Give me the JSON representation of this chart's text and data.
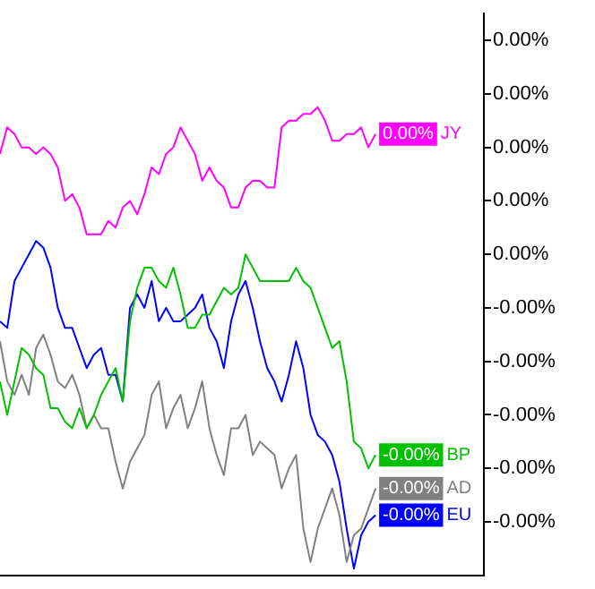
{
  "chart_data": {
    "type": "line",
    "grid": false,
    "legend": "right",
    "marker": "none",
    "line_style": "solid",
    "categories": [
      null,
      null,
      null,
      null,
      null,
      null,
      null,
      null,
      null,
      null,
      null,
      null,
      null,
      null,
      null,
      null,
      null,
      null,
      null,
      null,
      null,
      null,
      null,
      null,
      null,
      null,
      null,
      null,
      null,
      null,
      null,
      null,
      null,
      null,
      null,
      null,
      null,
      null,
      null,
      null,
      null,
      null,
      null,
      null,
      null,
      null,
      null,
      null,
      null,
      null,
      null,
      null,
      null,
      null,
      null,
      null,
      null,
      null,
      null,
      null,
      null,
      null,
      null,
      null,
      null,
      null,
      null,
      null
    ],
    "ylim": [
      -0.0048,
      0.0036
    ],
    "yticks": [
      {
        "value": 0.0032,
        "label": "0.00%"
      },
      {
        "value": 0.0024,
        "label": "0.00%"
      },
      {
        "value": 0.0016,
        "label": "0.00%"
      },
      {
        "value": 0.0008,
        "label": "0.00%"
      },
      {
        "value": 0,
        "label": "0.00%"
      },
      {
        "value": -0.0008,
        "label": "-0.00%"
      },
      {
        "value": -0.0016,
        "label": "-0.00%"
      },
      {
        "value": -0.0024,
        "label": "-0.00%"
      },
      {
        "value": -0.0032,
        "label": "-0.00%"
      },
      {
        "value": -0.004,
        "label": "-0.00%"
      }
    ],
    "series": [
      {
        "name": "JY",
        "color": "#ff00ff",
        "values": [
          0.0015,
          0.0019,
          0.0018,
          0.0016,
          0.0016,
          0.0015,
          0.0016,
          0.0015,
          0.0013,
          0.0008,
          0.0009,
          0.0007,
          0.0003,
          0.0003,
          0.0003,
          0.0005,
          0.0004,
          0.0007,
          0.0008,
          0.0006,
          0.0009,
          0.0013,
          0.0012,
          0.0015,
          0.0016,
          0.0019,
          0.0017,
          0.0015,
          0.0011,
          0.0013,
          0.0011,
          0.001,
          0.0007,
          0.0007,
          0.001,
          0.0011,
          0.0011,
          0.001,
          0.001,
          0.0019,
          0.002,
          0.002,
          0.0021,
          0.0021,
          0.0022,
          0.002,
          0.0017,
          0.0017,
          0.0018,
          0.0018,
          0.0019,
          0.0016,
          0.0018,
          null,
          null,
          null,
          null,
          null,
          null,
          null,
          null,
          null,
          null,
          null,
          null,
          null,
          null,
          null
        ],
        "value_labels": [
          null,
          null,
          null,
          null,
          null,
          null,
          null,
          null,
          null,
          null,
          null,
          null,
          null,
          null,
          null,
          null,
          null,
          null,
          null,
          null,
          null,
          null,
          null,
          null,
          null,
          null,
          null,
          null,
          null,
          null,
          null,
          null,
          null,
          null,
          null,
          null,
          null,
          null,
          null,
          null,
          null,
          null,
          null,
          null,
          null,
          null,
          null,
          null,
          null,
          null,
          null,
          null,
          "0.00%",
          null,
          null,
          null,
          null,
          null,
          null,
          null,
          null,
          null,
          null,
          null,
          null,
          null,
          null,
          null
        ]
      },
      {
        "name": "BP",
        "color": "#00c000",
        "values": [
          -0.0019,
          -0.0024,
          -0.0019,
          -0.0014,
          -0.0015,
          -0.0017,
          -0.0018,
          -0.0023,
          -0.0023,
          -0.0025,
          -0.0026,
          -0.0023,
          -0.0026,
          -0.0024,
          -0.0021,
          -0.0019,
          -0.0017,
          -0.0022,
          -0.001,
          -0.0005,
          -0.0002,
          -0.0002,
          -0.0004,
          -0.0005,
          -0.0002,
          -0.0006,
          -0.0011,
          -0.0011,
          -0.0009,
          -0.0009,
          -0.0007,
          -0.0005,
          -0.0006,
          -0.0005,
          0,
          -0.0002,
          -0.0004,
          -0.0004,
          -0.0004,
          -0.0004,
          -0.0004,
          -0.0002,
          -0.0004,
          -0.0005,
          -0.0008,
          -0.0011,
          -0.0014,
          -0.0013,
          -0.0019,
          -0.0028,
          -0.0029,
          -0.0032,
          -0.003,
          null,
          null,
          null,
          null,
          null,
          null,
          null,
          null,
          null,
          null,
          null,
          null,
          null,
          null,
          null
        ],
        "value_labels": [
          null,
          null,
          null,
          null,
          null,
          null,
          null,
          null,
          null,
          null,
          null,
          null,
          null,
          null,
          null,
          null,
          null,
          null,
          null,
          null,
          null,
          null,
          null,
          null,
          null,
          null,
          null,
          null,
          null,
          null,
          null,
          null,
          null,
          null,
          null,
          null,
          null,
          null,
          null,
          null,
          null,
          null,
          null,
          null,
          null,
          null,
          null,
          null,
          null,
          null,
          null,
          null,
          "-0.00%",
          null,
          null,
          null,
          null,
          null,
          null,
          null,
          null,
          null,
          null,
          null,
          null,
          null,
          null,
          null
        ]
      },
      {
        "name": "AD",
        "color": "#808080",
        "values": [
          -0.0013,
          -0.0019,
          -0.0021,
          -0.0018,
          -0.0021,
          -0.0014,
          -0.0012,
          -0.0015,
          -0.0019,
          -0.002,
          -0.0018,
          -0.0021,
          -0.0026,
          -0.0024,
          -0.0026,
          -0.0026,
          -0.0031,
          -0.0035,
          -0.0031,
          -0.0029,
          -0.0027,
          -0.0021,
          -0.0019,
          -0.0026,
          -0.0023,
          -0.0021,
          -0.0026,
          -0.0023,
          -0.0019,
          -0.0026,
          -0.003,
          -0.0033,
          -0.0026,
          -0.0026,
          -0.0024,
          -0.003,
          -0.0028,
          -0.0029,
          -0.003,
          -0.0035,
          -0.0032,
          -0.003,
          -0.0041,
          -0.0046,
          -0.0041,
          -0.0038,
          -0.0035,
          -0.0039,
          -0.0046,
          -0.0042,
          -0.0041,
          -0.0038,
          -0.0035,
          null,
          null,
          null,
          null,
          null,
          null,
          null,
          null,
          null,
          null,
          null,
          null,
          null,
          null,
          null
        ],
        "value_labels": [
          null,
          null,
          null,
          null,
          null,
          null,
          null,
          null,
          null,
          null,
          null,
          null,
          null,
          null,
          null,
          null,
          null,
          null,
          null,
          null,
          null,
          null,
          null,
          null,
          null,
          null,
          null,
          null,
          null,
          null,
          null,
          null,
          null,
          null,
          null,
          null,
          null,
          null,
          null,
          null,
          null,
          null,
          null,
          null,
          null,
          null,
          null,
          null,
          null,
          null,
          null,
          null,
          "-0.00%",
          null,
          null,
          null,
          null,
          null,
          null,
          null,
          null,
          null,
          null,
          null,
          null,
          null,
          null,
          null
        ]
      },
      {
        "name": "EU",
        "color": "#0000ff",
        "values": [
          -0.001,
          -0.0011,
          -0.0004,
          -0.0002,
          0,
          0.0002,
          0.0001,
          -0.0002,
          -0.0008,
          -0.0011,
          -0.0011,
          -0.0014,
          -0.0017,
          -0.0015,
          -0.0014,
          -0.0018,
          -0.0018,
          -0.0022,
          -0.0008,
          -0.0006,
          -0.0008,
          -0.0004,
          -0.001,
          -0.0008,
          -0.001,
          -0.001,
          -0.0009,
          -0.0008,
          -0.0006,
          -0.0011,
          -0.0013,
          -0.0017,
          -0.001,
          -0.0006,
          -0.0004,
          -0.0008,
          -0.0013,
          -0.0017,
          -0.0019,
          -0.0022,
          -0.0018,
          -0.0013,
          -0.0017,
          -0.0024,
          -0.0027,
          -0.0028,
          -0.003,
          -0.0034,
          -0.0041,
          -0.0047,
          -0.0042,
          -0.004,
          -0.0039,
          null,
          null,
          null,
          null,
          null,
          null,
          null,
          null,
          null,
          null,
          null,
          null,
          null,
          null,
          null
        ],
        "value_labels": [
          null,
          null,
          null,
          null,
          null,
          null,
          null,
          null,
          null,
          null,
          null,
          null,
          null,
          null,
          null,
          null,
          null,
          null,
          null,
          null,
          null,
          null,
          null,
          null,
          null,
          null,
          null,
          null,
          null,
          null,
          null,
          null,
          null,
          null,
          null,
          null,
          null,
          null,
          null,
          null,
          null,
          null,
          null,
          null,
          null,
          null,
          null,
          null,
          null,
          null,
          null,
          null,
          "-0.00%",
          null,
          null,
          null,
          null,
          null,
          null,
          null,
          null,
          null,
          null,
          null,
          null,
          null,
          null,
          null
        ]
      }
    ]
  }
}
